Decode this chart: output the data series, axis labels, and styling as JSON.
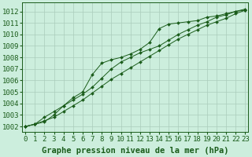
{
  "line1": [
    1002.0,
    1002.2,
    1002.4,
    1003.0,
    1003.8,
    1004.5,
    1005.0,
    1006.5,
    1007.5,
    1007.8,
    1008.0,
    1008.3,
    1008.7,
    1009.3,
    1010.5,
    1010.9,
    1011.0,
    1011.1,
    1011.2,
    1011.5,
    1011.6,
    1011.8,
    1012.0,
    1012.1
  ],
  "line2": [
    1002.0,
    1002.2,
    1002.5,
    1002.8,
    1003.3,
    1003.8,
    1004.3,
    1004.9,
    1005.5,
    1006.1,
    1006.6,
    1007.1,
    1007.6,
    1008.1,
    1008.6,
    1009.1,
    1009.6,
    1010.0,
    1010.4,
    1010.8,
    1011.1,
    1011.4,
    1011.8,
    1012.1
  ],
  "line3": [
    1002.0,
    1002.2,
    1002.8,
    1003.3,
    1003.8,
    1004.3,
    1004.8,
    1005.4,
    1006.2,
    1007.0,
    1007.6,
    1008.0,
    1008.4,
    1008.7,
    1009.0,
    1009.5,
    1010.0,
    1010.4,
    1010.8,
    1011.1,
    1011.5,
    1011.7,
    1012.0,
    1012.2
  ],
  "x_values": [
    0,
    1,
    2,
    3,
    4,
    5,
    6,
    7,
    8,
    9,
    10,
    11,
    12,
    13,
    14,
    15,
    16,
    17,
    18,
    19,
    20,
    21,
    22,
    23
  ],
  "x_labels": [
    "0",
    "1",
    "2",
    "3",
    "4",
    "5",
    "6",
    "7",
    "8",
    "9",
    "10",
    "11",
    "12",
    "13",
    "14",
    "15",
    "16",
    "17",
    "18",
    "19",
    "20",
    "21",
    "22",
    "23"
  ],
  "y_min": 1001.5,
  "y_max": 1012.8,
  "y_ticks": [
    1002,
    1003,
    1004,
    1005,
    1006,
    1007,
    1008,
    1009,
    1010,
    1011,
    1012
  ],
  "line_color": "#1a5c1a",
  "marker": "D",
  "marker_size": 2.0,
  "bg_color": "#cceedd",
  "grid_color": "#aaccbb",
  "xlabel": "Graphe pression niveau de la mer (hPa)",
  "xlabel_fontsize": 7.5,
  "tick_fontsize": 6.5,
  "linewidth": 0.7
}
